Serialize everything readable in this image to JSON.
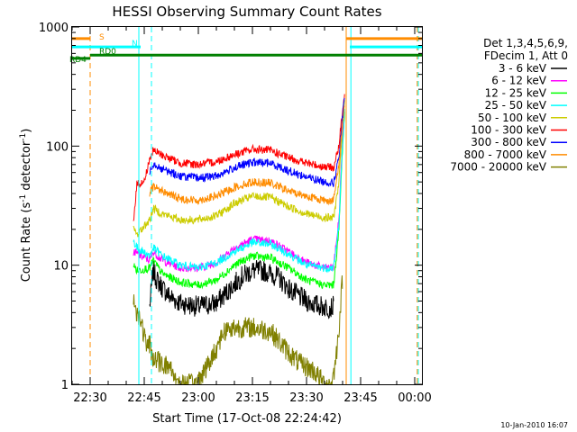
{
  "chart_data": {
    "type": "line",
    "title": "HESSI Observing Summary Count Rates",
    "xlabel": "Start Time (17-Oct-08 22:24:42)",
    "ylabel_main": "Count Rate (s",
    "ylabel_sup1": "-1",
    "ylabel_mid": " detector",
    "ylabel_sup2": "-1",
    "ylabel_end": ")",
    "yscale": "log",
    "ylim": [
      1,
      1000
    ],
    "yticks": [
      {
        "value": 1,
        "label": "1"
      },
      {
        "value": 10,
        "label": "10"
      },
      {
        "value": 100,
        "label": "100"
      },
      {
        "value": 1000,
        "label": "1000"
      }
    ],
    "xlim_minutes": [
      -5,
      92
    ],
    "xticks": [
      {
        "t": 0,
        "label": "22:30"
      },
      {
        "t": 15,
        "label": "22:45"
      },
      {
        "t": 30,
        "label": "23:00"
      },
      {
        "t": 45,
        "label": "23:15"
      },
      {
        "t": 60,
        "label": "23:30"
      },
      {
        "t": 75,
        "label": "23:45"
      },
      {
        "t": 90,
        "label": "00:00"
      }
    ],
    "legend": {
      "header1": "Det 1,3,4,5,6,9,",
      "header2": "FDecim 1, Att 0",
      "placement": "right"
    },
    "series": [
      {
        "name": "3 - 6 keV",
        "color": "#000000",
        "values": [
          [
            16.5,
            4.5
          ],
          [
            17.5,
            9
          ],
          [
            18.5,
            7.5
          ],
          [
            20,
            6.5
          ],
          [
            22,
            5.5
          ],
          [
            25,
            4.8
          ],
          [
            30,
            4.5
          ],
          [
            35,
            4.8
          ],
          [
            38,
            6
          ],
          [
            42,
            8
          ],
          [
            45,
            9
          ],
          [
            48,
            9
          ],
          [
            52,
            8
          ],
          [
            56,
            6
          ],
          [
            60,
            5
          ],
          [
            63,
            4.6
          ],
          [
            66,
            4.4
          ],
          [
            67.5,
            4.5
          ]
        ]
      },
      {
        "name": "6 - 12 keV",
        "color": "#ff00ff",
        "values": [
          [
            12,
            13
          ],
          [
            14,
            12
          ],
          [
            16.5,
            11
          ],
          [
            17.5,
            13
          ],
          [
            20,
            11
          ],
          [
            25,
            9.5
          ],
          [
            30,
            9.5
          ],
          [
            35,
            10.5
          ],
          [
            40,
            14
          ],
          [
            45,
            16.5
          ],
          [
            50,
            16
          ],
          [
            55,
            13
          ],
          [
            60,
            10.5
          ],
          [
            65,
            9.5
          ],
          [
            67.5,
            9.5
          ],
          [
            69,
            25
          ],
          [
            70,
            120
          ],
          [
            70.6,
            220
          ]
        ]
      },
      {
        "name": "12 - 25 keV",
        "color": "#00ff00",
        "values": [
          [
            12,
            10
          ],
          [
            13,
            9
          ],
          [
            16.5,
            9.5
          ],
          [
            17.5,
            11
          ],
          [
            20,
            8.5
          ],
          [
            25,
            7.2
          ],
          [
            30,
            6.8
          ],
          [
            35,
            7.5
          ],
          [
            40,
            10
          ],
          [
            45,
            12
          ],
          [
            50,
            11.5
          ],
          [
            55,
            9.5
          ],
          [
            60,
            7.5
          ],
          [
            65,
            6.8
          ],
          [
            67.5,
            6.8
          ],
          [
            69,
            20
          ],
          [
            70,
            100
          ],
          [
            70.6,
            200
          ]
        ]
      },
      {
        "name": "25 - 50 keV",
        "color": "#00ffff",
        "values": [
          [
            12,
            16
          ],
          [
            13,
            14
          ],
          [
            16.5,
            12
          ],
          [
            17.5,
            14
          ],
          [
            20,
            12
          ],
          [
            25,
            10
          ],
          [
            30,
            9.5
          ],
          [
            35,
            10.5
          ],
          [
            40,
            13
          ],
          [
            45,
            15.5
          ],
          [
            50,
            15
          ],
          [
            55,
            12.5
          ],
          [
            60,
            10
          ],
          [
            65,
            9.5
          ],
          [
            67.5,
            9.5
          ],
          [
            69,
            22
          ],
          [
            70,
            110
          ],
          [
            70.6,
            210
          ]
        ]
      },
      {
        "name": "50 - 100 keV",
        "color": "#cccc00",
        "values": [
          [
            12,
            20
          ],
          [
            13,
            18
          ],
          [
            16.5,
            24
          ],
          [
            17.5,
            30
          ],
          [
            20,
            27
          ],
          [
            25,
            24
          ],
          [
            30,
            24
          ],
          [
            35,
            26
          ],
          [
            40,
            33
          ],
          [
            45,
            38
          ],
          [
            50,
            37
          ],
          [
            55,
            31
          ],
          [
            60,
            27
          ],
          [
            65,
            25
          ],
          [
            67.5,
            25
          ],
          [
            69,
            50
          ],
          [
            70,
            150
          ],
          [
            70.6,
            240
          ]
        ]
      },
      {
        "name": "100 - 300 keV",
        "color": "#ff0000",
        "values": [
          [
            12,
            24
          ],
          [
            13,
            48
          ],
          [
            15,
            50
          ],
          [
            16.5,
            78
          ],
          [
            17.5,
            92
          ],
          [
            20,
            84
          ],
          [
            25,
            72
          ],
          [
            30,
            70
          ],
          [
            35,
            74
          ],
          [
            40,
            85
          ],
          [
            45,
            94
          ],
          [
            50,
            92
          ],
          [
            55,
            80
          ],
          [
            60,
            72
          ],
          [
            65,
            67
          ],
          [
            67.5,
            66
          ],
          [
            69,
            100
          ],
          [
            70,
            200
          ],
          [
            70.6,
            260
          ]
        ]
      },
      {
        "name": "300 - 800 keV",
        "color": "#0000ff",
        "values": [
          [
            16.5,
            62
          ],
          [
            17.5,
            72
          ],
          [
            20,
            64
          ],
          [
            25,
            56
          ],
          [
            30,
            54
          ],
          [
            35,
            56
          ],
          [
            40,
            66
          ],
          [
            45,
            73
          ],
          [
            50,
            72
          ],
          [
            55,
            62
          ],
          [
            60,
            55
          ],
          [
            65,
            50
          ],
          [
            67.5,
            49
          ],
          [
            69,
            80
          ],
          [
            70,
            180
          ],
          [
            70.6,
            250
          ]
        ]
      },
      {
        "name": "800 - 7000 keV",
        "color": "#ff8c00",
        "values": [
          [
            16.5,
            40
          ],
          [
            17.5,
            46
          ],
          [
            20,
            42
          ],
          [
            25,
            36
          ],
          [
            30,
            35
          ],
          [
            35,
            38
          ],
          [
            40,
            45
          ],
          [
            45,
            50
          ],
          [
            50,
            49
          ],
          [
            55,
            42
          ],
          [
            60,
            38
          ],
          [
            65,
            35
          ],
          [
            67.5,
            35
          ],
          [
            69,
            70
          ],
          [
            70,
            160
          ],
          [
            70.6,
            230
          ]
        ]
      },
      {
        "name": "7000 - 20000 keV",
        "color": "#808000",
        "values": [
          [
            12,
            5
          ],
          [
            13,
            4
          ],
          [
            14,
            3.5
          ],
          [
            15,
            2.5
          ],
          [
            16,
            2
          ],
          [
            16.5,
            2.2
          ],
          [
            17,
            1.8
          ],
          [
            18,
            1.6
          ],
          [
            20,
            1.5
          ],
          [
            22,
            1.4
          ],
          [
            25,
            1
          ],
          [
            29,
            1
          ],
          [
            33,
            1.5
          ],
          [
            35,
            2
          ],
          [
            37,
            2.8
          ],
          [
            40,
            3
          ],
          [
            45,
            3
          ],
          [
            50,
            2.8
          ],
          [
            54,
            2
          ],
          [
            58,
            1.5
          ],
          [
            62,
            1.3
          ],
          [
            65,
            1
          ],
          [
            67,
            1
          ],
          [
            68,
            1.5
          ],
          [
            69,
            3
          ],
          [
            70,
            8
          ]
        ]
      }
    ],
    "flag_lines": [
      {
        "label": "S",
        "color": "#ff8c00",
        "y": 800,
        "segments": [
          [
            -5,
            0
          ],
          [
            71,
            92
          ]
        ]
      },
      {
        "label": "N",
        "color": "#00ffff",
        "y": 680,
        "segments": [
          [
            -5,
            14
          ],
          [
            72,
            92
          ]
        ]
      },
      {
        "label": "RD0",
        "color": "#008000",
        "y": 580,
        "segments": [
          [
            0,
            92
          ]
        ]
      },
      {
        "label": "RD4",
        "color": "#008000",
        "y": 545,
        "segments": [
          [
            -5,
            0
          ]
        ]
      }
    ],
    "vertical_markers": [
      {
        "t": 0,
        "color": "#ff8c00",
        "dashed": true
      },
      {
        "t": 13.5,
        "color": "#00ffff",
        "dashed": false
      },
      {
        "t": 17,
        "color": "#00ffff",
        "dashed": true
      },
      {
        "t": 71,
        "color": "#ff8c00",
        "dashed": false
      },
      {
        "t": 72.3,
        "color": "#00ffff",
        "dashed": false
      },
      {
        "t": 90.7,
        "color": "#ff8c00",
        "dashed": true
      },
      {
        "t": 91,
        "color": "#00ffff",
        "dashed": true
      }
    ],
    "footer": "10-Jan-2010 16:07"
  }
}
